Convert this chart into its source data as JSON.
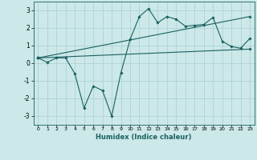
{
  "xlabel": "Humidex (Indice chaleur)",
  "xlim": [
    -0.5,
    23.5
  ],
  "ylim": [
    -3.5,
    3.5
  ],
  "xticks": [
    0,
    1,
    2,
    3,
    4,
    5,
    6,
    7,
    8,
    9,
    10,
    11,
    12,
    13,
    14,
    15,
    16,
    17,
    18,
    19,
    20,
    21,
    22,
    23
  ],
  "yticks": [
    -3,
    -2,
    -1,
    0,
    1,
    2,
    3
  ],
  "bg_color": "#cce8e8",
  "line_color": "#1a6060",
  "grid_color": "#aacfcf",
  "line1_x": [
    0,
    1,
    2,
    3,
    4,
    5,
    6,
    7,
    8,
    9,
    10,
    11,
    12,
    13,
    14,
    15,
    16,
    17,
    18,
    19,
    20,
    21,
    22,
    23
  ],
  "line1_y": [
    0.3,
    0.05,
    0.3,
    0.3,
    -0.6,
    -2.55,
    -1.3,
    -1.55,
    -3.0,
    -0.55,
    1.35,
    2.65,
    3.1,
    2.3,
    2.65,
    2.5,
    2.1,
    2.15,
    2.2,
    2.6,
    1.25,
    0.95,
    0.85,
    1.4
  ],
  "line2_x": [
    0,
    23
  ],
  "line2_y": [
    0.3,
    2.65
  ],
  "line3_x": [
    0,
    23
  ],
  "line3_y": [
    0.3,
    0.8
  ],
  "figsize": [
    3.2,
    2.0
  ],
  "dpi": 100
}
